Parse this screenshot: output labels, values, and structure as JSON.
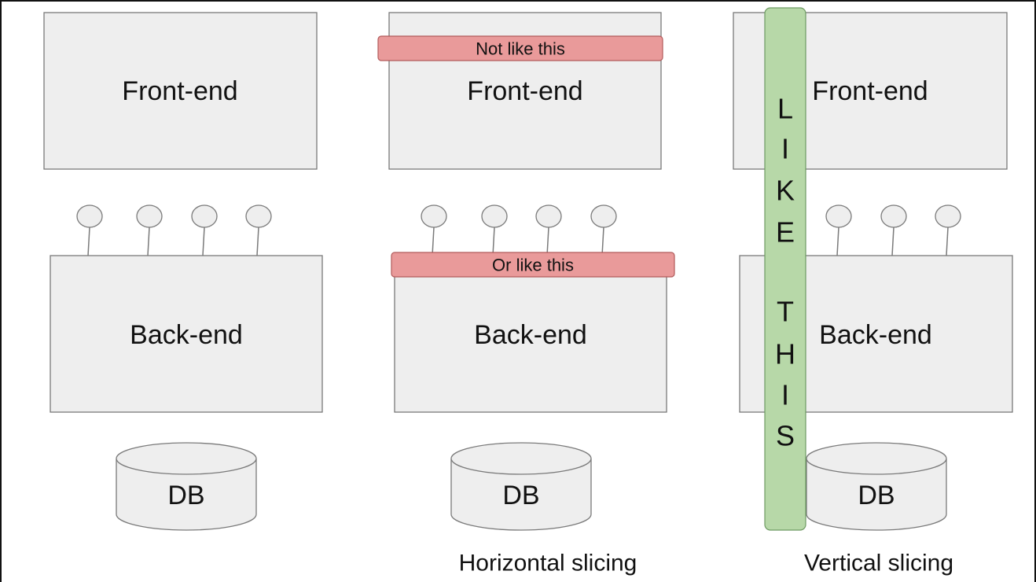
{
  "colors": {
    "box_fill": "#eeeeee",
    "box_stroke": "#7a7a7a",
    "banner_fill": "#e99a9a",
    "bar_fill": "#b7d8a8"
  },
  "columns": [
    {
      "id": "baseline",
      "frontend_label": "Front-end",
      "backend_label": "Back-end",
      "db_label": "DB",
      "endpoint_count": 4,
      "caption": ""
    },
    {
      "id": "horizontal",
      "frontend_label": "Front-end",
      "backend_label": "Back-end",
      "db_label": "DB",
      "endpoint_count": 4,
      "caption": "Horizontal slicing",
      "banners": {
        "top": "Not like this",
        "middle": "Or like this"
      }
    },
    {
      "id": "vertical",
      "frontend_label": "Front-end",
      "backend_label": "Back-end",
      "db_label": "DB",
      "endpoint_count": 3,
      "caption": "Vertical slicing",
      "vertical_bar_letters": [
        "L",
        "I",
        "K",
        "E",
        "T",
        "H",
        "I",
        "S"
      ]
    }
  ]
}
